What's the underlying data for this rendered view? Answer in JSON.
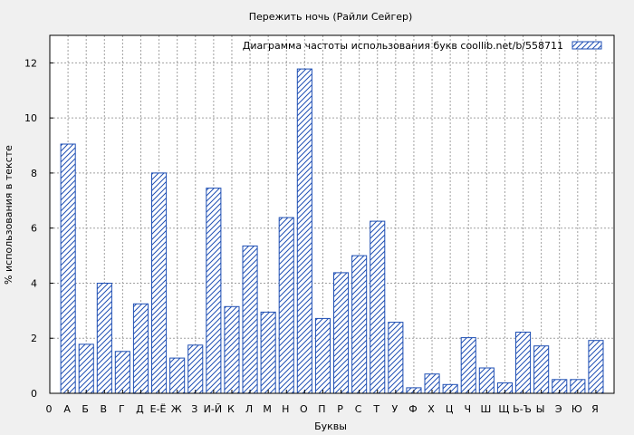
{
  "chart_data": {
    "type": "bar",
    "title": "Пережить ночь (Райли Сейгер)",
    "xlabel": "Буквы",
    "ylabel": "% использования в тексте",
    "legend": {
      "label": "Диаграмма частоты использования букв  coollib.net/b/558711",
      "position": "top-right"
    },
    "ylim": [
      0,
      13
    ],
    "yticks": [
      0,
      2,
      4,
      6,
      8,
      10,
      12
    ],
    "grid": true,
    "categories": [
      "А",
      "Б",
      "В",
      "Г",
      "Д",
      "Е-Ё",
      "Ж",
      "З",
      "И-Й",
      "К",
      "Л",
      "М",
      "Н",
      "О",
      "П",
      "Р",
      "С",
      "Т",
      "У",
      "Ф",
      "Х",
      "Ц",
      "Ч",
      "Ш",
      "Щ",
      "Ь-Ъ",
      "Ы",
      "Э",
      "Ю",
      "Я"
    ],
    "x_tick_labels": [
      "0",
      "А",
      "Б",
      "В",
      "Г",
      "Д",
      "Е-Ё",
      "Ж",
      "З",
      "И-Й",
      "К",
      "Л",
      "М",
      "Н",
      "О",
      "П",
      "Р",
      "С",
      "Т",
      "У",
      "Ф",
      "Х",
      "Ц",
      "Ч",
      "Ш",
      "Щ",
      "Ь-Ъ",
      "Ы",
      "Э",
      "Ю",
      "Я"
    ],
    "values": [
      9.05,
      1.78,
      4.0,
      1.52,
      3.25,
      8.0,
      1.28,
      1.75,
      7.45,
      3.15,
      5.35,
      2.95,
      6.38,
      11.78,
      2.72,
      4.38,
      5.0,
      6.25,
      2.58,
      0.2,
      0.7,
      0.32,
      2.02,
      0.92,
      0.38,
      2.22,
      1.72,
      0.5,
      0.5,
      1.92
    ]
  }
}
